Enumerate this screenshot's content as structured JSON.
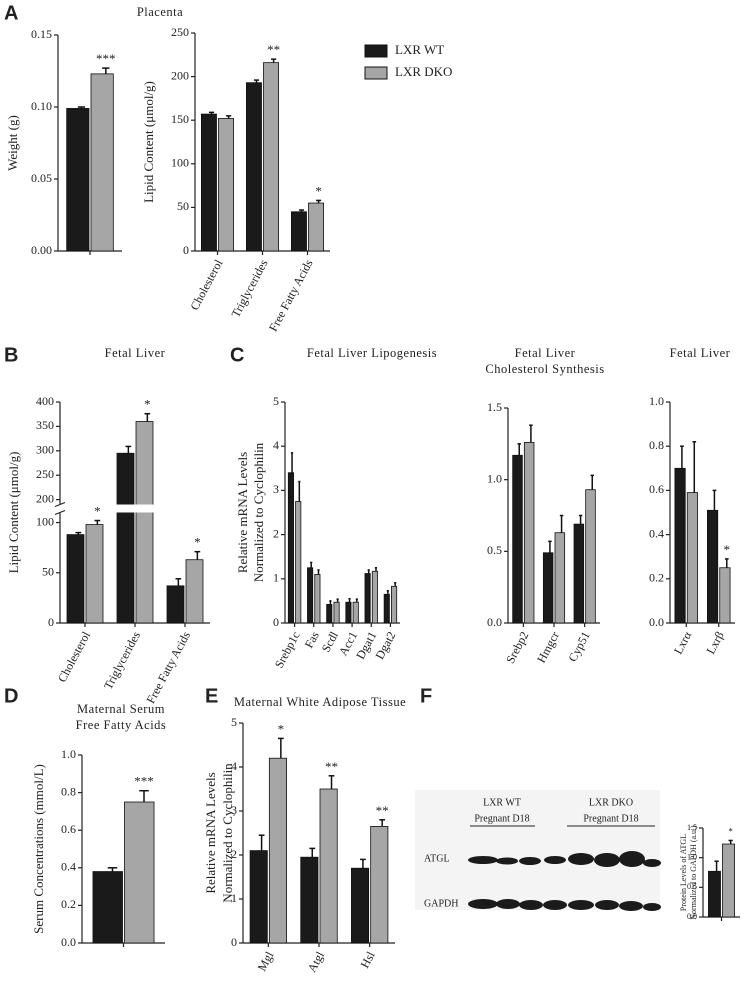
{
  "panels": [
    "A",
    "B",
    "C",
    "D",
    "E",
    "F"
  ],
  "blot": {
    "group_labels": [
      [
        "LXR WT",
        "Pregnant D18"
      ],
      [
        "LXR DKO",
        "Pregnant D18"
      ]
    ],
    "row_labels": [
      "ATGL",
      "GAPDH"
    ]
  },
  "chart_data": [
    {
      "type": "bar",
      "ylabel": "Weight (g)",
      "categories": [
        null
      ],
      "series": [
        {
          "color": "#1a1a1a",
          "values": [
            0.099
          ],
          "errors": [
            0.001
          ]
        },
        {
          "color": "#a6a6a6",
          "values": [
            0.123
          ],
          "errors": [
            0.004
          ]
        }
      ],
      "stars": [
        "***"
      ],
      "ylim": [
        0,
        0.15
      ],
      "yticks": [
        {
          "value": 0,
          "label": "0.00"
        },
        0.05,
        {
          "value": 0.1,
          "label": "0.10"
        },
        0.15
      ]
    },
    {
      "type": "bar",
      "title": "Placenta",
      "ylabel": "Lipid Content (μmol/g)",
      "categories": [
        "Cholesterol",
        "Triglycerides",
        "Free Fatty Acids"
      ],
      "series": [
        {
          "name": "LXR WT",
          "color": "#1a1a1a",
          "values": [
            157,
            193,
            45
          ],
          "errors": [
            2,
            3,
            2
          ]
        },
        {
          "name": "LXR DKO",
          "color": "#a6a6a6",
          "values": [
            152,
            216,
            55
          ],
          "errors": [
            3,
            4,
            3
          ]
        }
      ],
      "stars": [
        null,
        "**",
        "*"
      ],
      "ylim": [
        0,
        250
      ],
      "yticks": [
        0,
        50,
        100,
        150,
        200,
        250
      ],
      "legend": "right"
    },
    {
      "type": "bar",
      "title": "Fetal Liver",
      "ylabel": "Lipid Content (μmol/g)",
      "categories": [
        "Cholesterol",
        "Triglycerides",
        "Free Fatty Acids"
      ],
      "series": [
        {
          "color": "#1a1a1a",
          "values": [
            88,
            295,
            37
          ],
          "errors": [
            2,
            14,
            7
          ]
        },
        {
          "color": "#a6a6a6",
          "values": [
            98,
            360,
            63
          ],
          "errors": [
            4,
            16,
            8
          ]
        }
      ],
      "stars": [
        "*",
        "*",
        "*"
      ],
      "ylim": [
        0,
        400
      ],
      "axis_break": [
        110,
        190
      ],
      "yticks": [
        0,
        50,
        100,
        200,
        250,
        300,
        350,
        400
      ]
    },
    {
      "type": "bar",
      "title": "Fetal Liver Lipogenesis",
      "ylabel": [
        "Relative mRNA Levels",
        "Normalized to Cyclophilin"
      ],
      "categories": [
        "Srebp1c",
        "Fas",
        "Scdl",
        "Acc1",
        "Dgat1",
        "Dgat2"
      ],
      "series": [
        {
          "color": "#1a1a1a",
          "values": [
            3.4,
            1.25,
            0.42,
            0.47,
            1.12,
            0.65
          ],
          "errors": [
            0.45,
            0.12,
            0.08,
            0.08,
            0.08,
            0.08
          ]
        },
        {
          "color": "#a6a6a6",
          "values": [
            2.75,
            1.1,
            0.47,
            0.47,
            1.17,
            0.83
          ],
          "errors": [
            0.45,
            0.1,
            0.07,
            0.07,
            0.08,
            0.08
          ]
        }
      ],
      "ylim": [
        0,
        5
      ],
      "yticks": [
        0,
        1,
        2,
        3,
        4,
        5
      ]
    },
    {
      "type": "bar",
      "title": [
        "Fetal Liver",
        "Cholesterol Synthesis"
      ],
      "categories": [
        "Srebp2",
        "Hmgcr",
        "Cyp51"
      ],
      "series": [
        {
          "color": "#1a1a1a",
          "values": [
            1.17,
            0.49,
            0.69
          ],
          "errors": [
            0.08,
            0.08,
            0.06
          ]
        },
        {
          "color": "#a6a6a6",
          "values": [
            1.26,
            0.63,
            0.93
          ],
          "errors": [
            0.12,
            0.12,
            0.1
          ]
        }
      ],
      "ylim": [
        0,
        1.5
      ],
      "yticks": [
        {
          "value": 0,
          "label": "0.0"
        },
        0.5,
        {
          "value": 1,
          "label": "1.0"
        },
        1.5
      ]
    },
    {
      "type": "bar",
      "title": "Fetal Liver",
      "categories": [
        "Lxrα",
        "Lxrβ"
      ],
      "series": [
        {
          "color": "#1a1a1a",
          "values": [
            0.7,
            0.51
          ],
          "errors": [
            0.1,
            0.09
          ]
        },
        {
          "color": "#a6a6a6",
          "values": [
            0.59,
            0.25
          ],
          "errors": [
            0.23,
            0.04
          ]
        }
      ],
      "stars": [
        null,
        "*"
      ],
      "ylim": [
        0,
        1
      ],
      "yticks": [
        {
          "value": 0,
          "label": "0.0"
        },
        0.2,
        0.4,
        0.6,
        0.8,
        {
          "value": 1,
          "label": "1.0"
        }
      ]
    },
    {
      "type": "bar",
      "title": [
        "Maternal Serum",
        "Free Fatty Acids"
      ],
      "ylabel": "Serum Concentrations (mmol/L)",
      "categories": [
        null
      ],
      "series": [
        {
          "color": "#1a1a1a",
          "values": [
            0.38
          ],
          "errors": [
            0.02
          ]
        },
        {
          "color": "#a6a6a6",
          "values": [
            0.75
          ],
          "errors": [
            0.06
          ]
        }
      ],
      "stars": [
        "***"
      ],
      "ylim": [
        0,
        1
      ],
      "yticks": [
        {
          "value": 0,
          "label": "0.0"
        },
        0.2,
        0.4,
        0.6,
        0.8,
        {
          "value": 1,
          "label": "1.0"
        }
      ]
    },
    {
      "type": "bar",
      "title": "Maternal White Adipose Tissue",
      "ylabel": [
        "Relative mRNA Levels",
        "Normalized to Cyclophilin"
      ],
      "categories": [
        "Mgl",
        "Atgl",
        "Hsl"
      ],
      "series": [
        {
          "color": "#1a1a1a",
          "values": [
            2.1,
            1.95,
            1.7
          ],
          "errors": [
            0.35,
            0.2,
            0.2
          ]
        },
        {
          "color": "#a6a6a6",
          "values": [
            4.2,
            3.5,
            2.65
          ],
          "errors": [
            0.45,
            0.3,
            0.15
          ]
        }
      ],
      "stars": [
        "*",
        "**",
        "**"
      ],
      "ylim": [
        0,
        5
      ],
      "yticks": [
        0,
        1,
        2,
        3,
        4,
        5
      ]
    },
    {
      "type": "bar",
      "ylabel": [
        "Protein Levels of ATGL",
        "Normalized to GAPDH (a.u.)"
      ],
      "categories": [
        null
      ],
      "series": [
        {
          "color": "#1a1a1a",
          "values": [
            0.77
          ],
          "errors": [
            0.17
          ]
        },
        {
          "color": "#a6a6a6",
          "values": [
            1.23
          ],
          "errors": [
            0.06
          ]
        }
      ],
      "stars": [
        "*"
      ],
      "ylim": [
        0,
        1.5
      ],
      "yticks": [
        {
          "value": 0,
          "label": "0.0"
        },
        0.5,
        {
          "value": 1,
          "label": "1.0"
        },
        1.5
      ]
    }
  ]
}
